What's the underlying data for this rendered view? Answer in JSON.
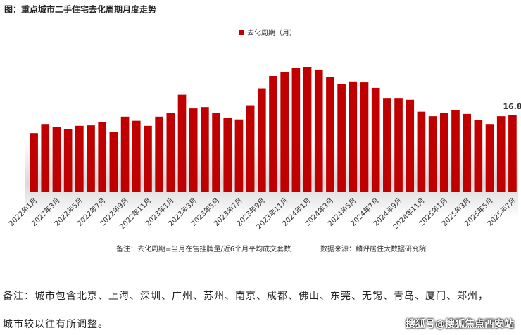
{
  "chart_data": {
    "type": "bar",
    "title": "图：重点城市二手住宅去化周期月度走势",
    "categories": [
      "2022年1月",
      null,
      "2022年3月",
      null,
      "2022年5月",
      null,
      "2022年7月",
      null,
      "2022年9月",
      null,
      "2022年11月",
      null,
      "2023年1月",
      null,
      "2023年3月",
      null,
      "2023年5月",
      null,
      "2023年7月",
      null,
      "2023年9月",
      null,
      "2023年11月",
      null,
      "2024年1月",
      null,
      "2024年3月",
      null,
      "2024年5月",
      null,
      "2024年7月",
      null,
      "2024年9月",
      null,
      "2024年11月",
      null,
      "2025年1月",
      null,
      "2025年3月",
      null,
      "2025年5月",
      null,
      "2025年7月"
    ],
    "series": [
      {
        "name": "去化周期（月）",
        "color": "#c00000",
        "values": [
          12.9,
          14.9,
          14.2,
          13.7,
          14.5,
          14.6,
          15.3,
          13.1,
          16.5,
          15.6,
          14.5,
          16.5,
          17.3,
          21.3,
          18.3,
          18.6,
          17.4,
          16.3,
          15.9,
          19.0,
          22.7,
          25.4,
          26.3,
          27.1,
          27.4,
          26.8,
          25.1,
          23.6,
          24.2,
          24.0,
          22.8,
          20.6,
          20.6,
          20.2,
          17.6,
          16.6,
          17.3,
          18.0,
          17.1,
          15.7,
          14.9,
          16.6,
          16.8
        ]
      }
    ],
    "show_value_label": "last",
    "notes": [
      "备注：去化周期=当月在售挂牌量/近6个月平均成交套数",
      "数据来源：麟评居住大数据研究院"
    ]
  },
  "footnote": [
    "备注：城市包含北京、上海、深圳、广州、苏州、南京、成都、佛山、东莞、无锡、青岛、厦门、郑州，",
    "城市较以往有所调整。"
  ],
  "watermark": "搜狐号@搜狐焦点西安站"
}
